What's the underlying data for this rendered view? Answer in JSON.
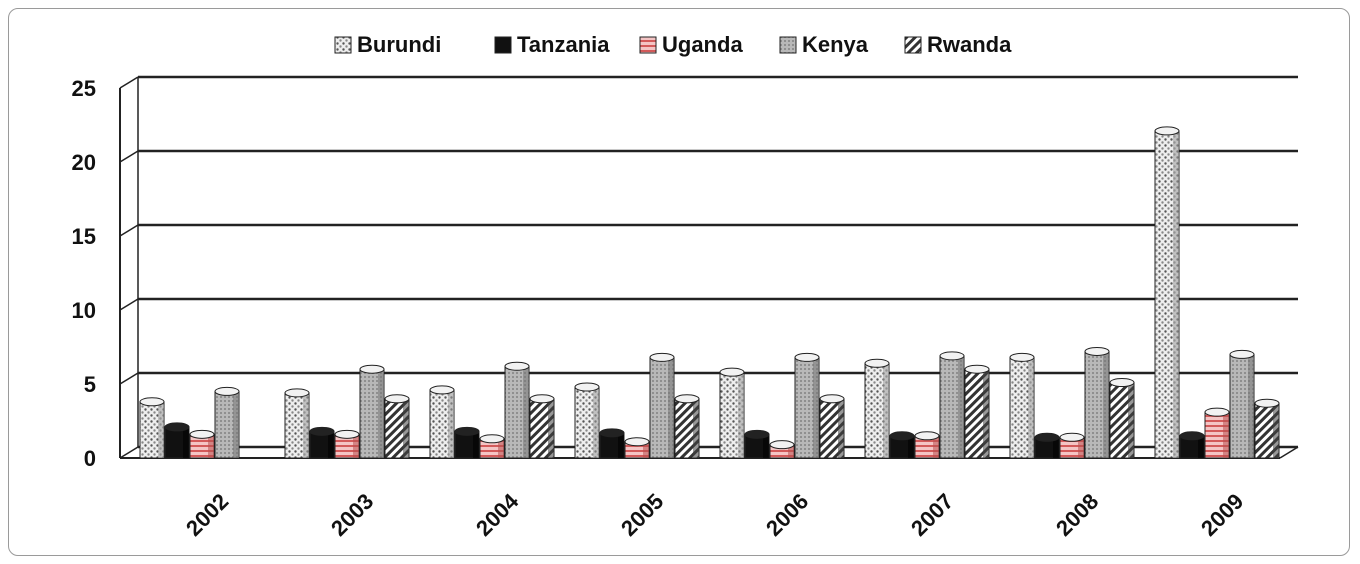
{
  "chart_data": {
    "type": "bar",
    "title": "",
    "xlabel": "",
    "ylabel": "",
    "ylim": [
      0,
      25
    ],
    "yticks": [
      "0",
      "5",
      "10",
      "15",
      "20",
      "25"
    ],
    "categories": [
      "2002",
      "2003",
      "2004",
      "2005",
      "2006",
      "2007",
      "2008",
      "2009"
    ],
    "grid": true,
    "legend_position": "top",
    "series": [
      {
        "name": "Burundi",
        "values": [
          3.8,
          4.4,
          4.6,
          4.8,
          5.8,
          6.4,
          6.8,
          22.1
        ],
        "color": "#d9d9d9",
        "pattern": "dots"
      },
      {
        "name": "Tanzania",
        "values": [
          2.1,
          1.8,
          1.8,
          1.7,
          1.6,
          1.5,
          1.4,
          1.5
        ],
        "color": "#111111",
        "pattern": "solid"
      },
      {
        "name": "Uganda",
        "values": [
          1.6,
          1.6,
          1.3,
          1.1,
          0.9,
          1.5,
          1.4,
          3.1
        ],
        "color": "#e8a0a0",
        "pattern": "stripes"
      },
      {
        "name": "Kenya",
        "values": [
          4.5,
          6.0,
          6.2,
          6.8,
          6.8,
          6.9,
          7.2,
          7.0
        ],
        "color": "#a9a9a9",
        "pattern": "grid"
      },
      {
        "name": "Rwanda",
        "values": [
          0,
          4.0,
          4.0,
          4.0,
          4.0,
          6.0,
          5.1,
          3.7
        ],
        "color": "#ffffff",
        "pattern": "diagonal"
      }
    ]
  }
}
